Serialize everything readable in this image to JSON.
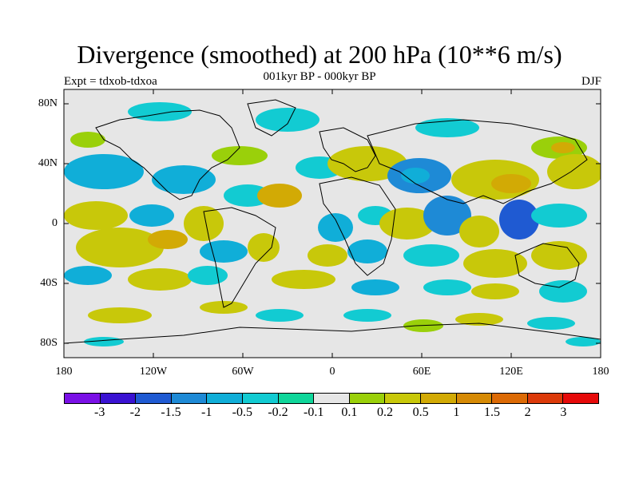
{
  "title": "Divergence (smoothed) at 200 hPa (10**6 m/s)",
  "subtitle": "001kyr BP - 000kyr BP",
  "experiment": "Expt = tdxob-tdxoa",
  "season": "DJF",
  "lat_labels": [
    "80N",
    "40N",
    "0",
    "40S",
    "80S"
  ],
  "lon_labels": [
    "180",
    "120W",
    "60W",
    "0",
    "60E",
    "120E",
    "180"
  ],
  "colorbar": {
    "colors": [
      "#7a10e6",
      "#3a12d2",
      "#1f5ad2",
      "#1e8ad6",
      "#10aed8",
      "#12cbd2",
      "#0fd69a",
      "#e6e6e6",
      "#9ad00a",
      "#c8c80a",
      "#d2aa05",
      "#d68a05",
      "#dc6a05",
      "#dc3a0a",
      "#e60a0a"
    ],
    "labels": [
      "-3",
      "-2",
      "-1.5",
      "-1",
      "-0.5",
      "-0.2",
      "-0.1",
      "0.1",
      "0.2",
      "0.5",
      "1",
      "1.5",
      "2",
      "3"
    ]
  },
  "colors": {
    "background": "#e6e6e6",
    "coastline": "#000000"
  }
}
